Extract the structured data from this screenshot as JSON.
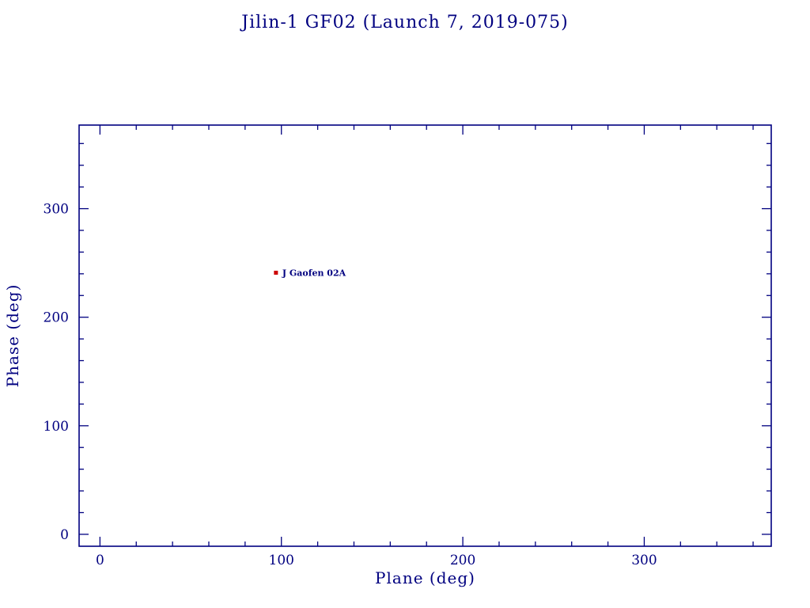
{
  "chart_data": {
    "type": "scatter",
    "title": "Jilin-1 GF02 (Launch 7, 2019-075)",
    "xlabel": "Plane (deg)",
    "ylabel": "Phase (deg)",
    "xlim": [
      -11.5,
      370
    ],
    "ylim": [
      -11,
      377
    ],
    "x_major_ticks": [
      0,
      100,
      200,
      300
    ],
    "y_major_ticks": [
      0,
      100,
      200,
      300
    ],
    "minor_tick_step": 20,
    "grid": false,
    "legend": "none",
    "axis_color": "#000080",
    "background_color": "#ffffff",
    "points": [
      {
        "x": 97,
        "y": 241,
        "label": "J Gaofen 02A",
        "marker": "square",
        "marker_color": "#cc0000",
        "label_color": "#000080"
      }
    ]
  }
}
